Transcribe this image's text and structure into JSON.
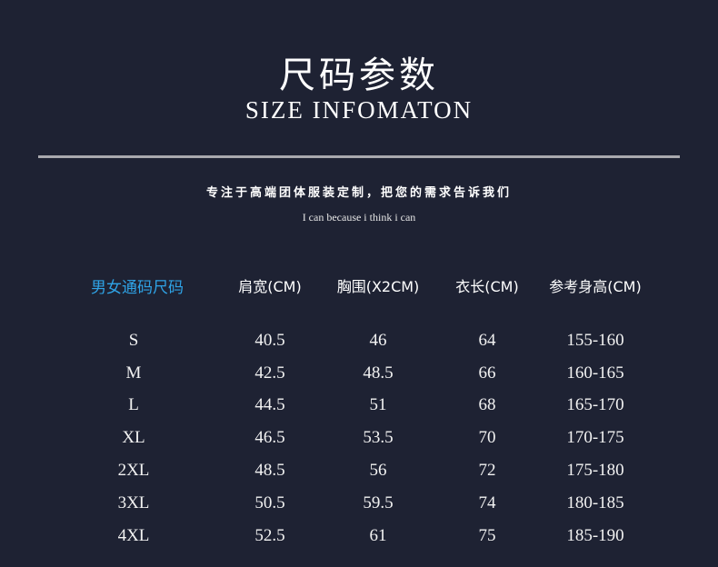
{
  "title": "尺码参数",
  "subtitle": "SIZE INFOMATON",
  "slogan": "专注于高端团体服装定制，把您的需求告诉我们",
  "motto": "I can because i think i can",
  "accent_color": "#2fa3e6",
  "table": {
    "headers": [
      "男女通码尺码",
      "肩宽(CM)",
      "胸围(X2CM)",
      "衣长(CM)",
      "参考身高(CM)"
    ],
    "rows": [
      [
        "S",
        "40.5",
        "46",
        "64",
        "155-160"
      ],
      [
        "M",
        "42.5",
        "48.5",
        "66",
        "160-165"
      ],
      [
        "L",
        "44.5",
        "51",
        "68",
        "165-170"
      ],
      [
        "XL",
        "46.5",
        "53.5",
        "70",
        "170-175"
      ],
      [
        "2XL",
        "48.5",
        "56",
        "72",
        "175-180"
      ],
      [
        "3XL",
        "50.5",
        "59.5",
        "74",
        "180-185"
      ],
      [
        "4XL",
        "52.5",
        "61",
        "75",
        "185-190"
      ]
    ]
  }
}
